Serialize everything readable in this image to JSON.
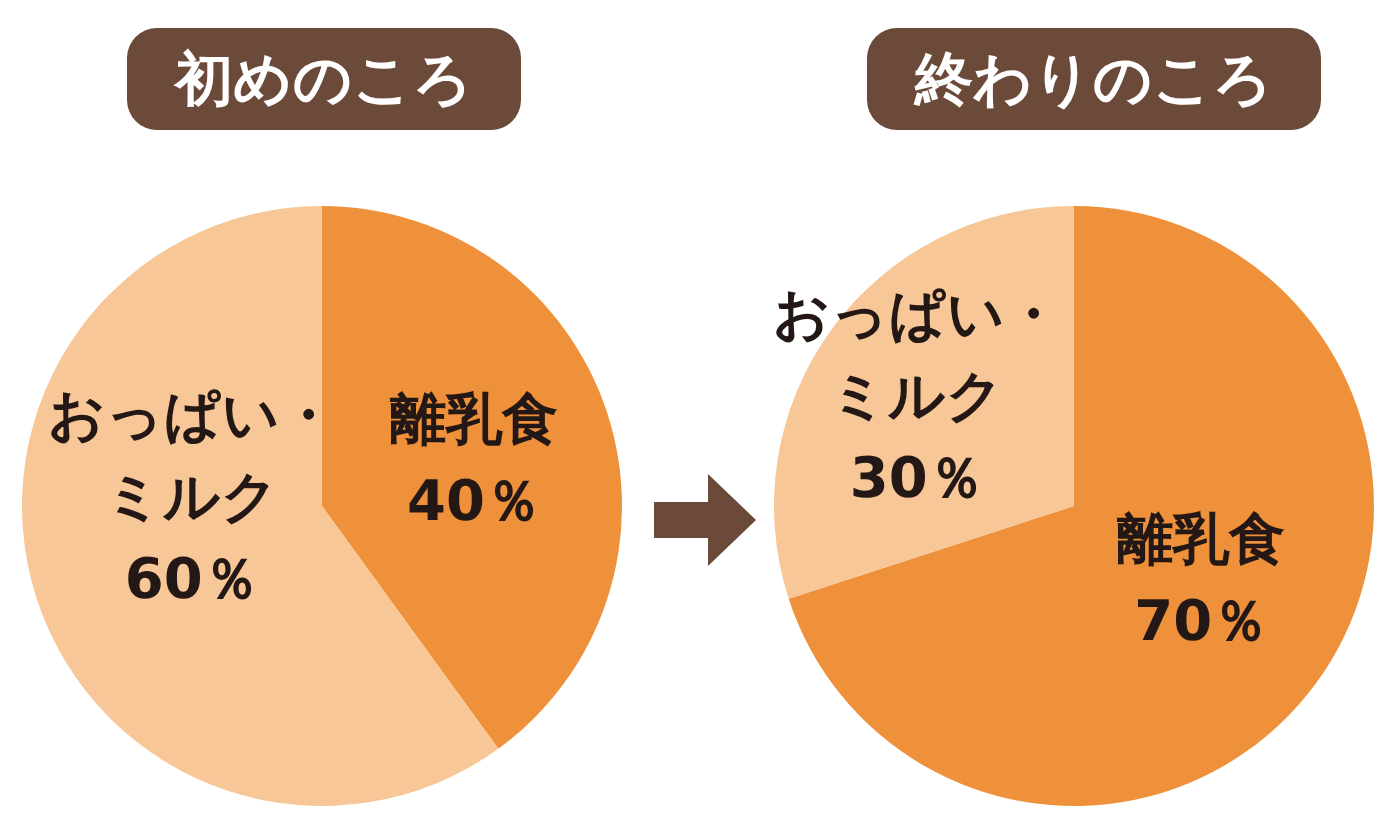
{
  "chart_data": [
    {
      "type": "pie",
      "title": "初めのころ",
      "categories": [
        "離乳食",
        "おっぱい・ミルク"
      ],
      "values": [
        40,
        60
      ],
      "colors": [
        "#ef913a",
        "#f8c797"
      ],
      "value_labels": [
        "40％",
        "60％"
      ]
    },
    {
      "type": "pie",
      "title": "終わりのころ",
      "categories": [
        "離乳食",
        "おっぱい・ミルク"
      ],
      "values": [
        70,
        30
      ],
      "colors": [
        "#ef913a",
        "#f8c797"
      ],
      "value_labels": [
        "70％",
        "30％"
      ]
    }
  ]
}
